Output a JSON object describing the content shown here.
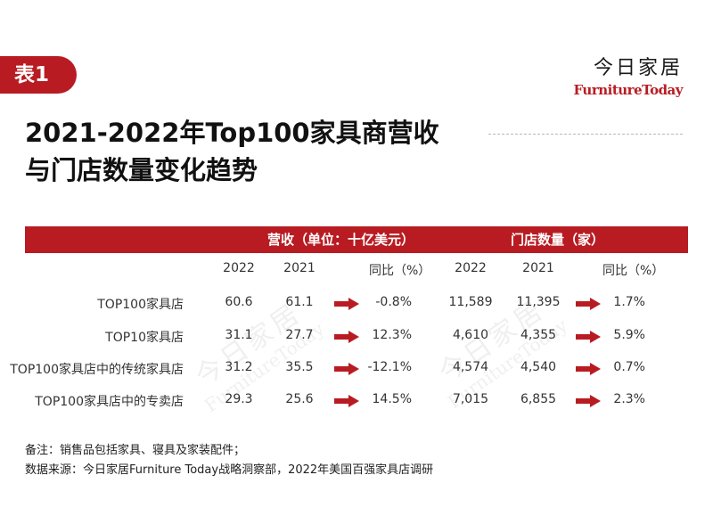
{
  "tag": "表1",
  "brand": {
    "cn": "今日家居",
    "en": "FurnitureToday"
  },
  "title": {
    "line1": "2021-2022年Top100家具商营收",
    "line2": "与门店数量变化趋势"
  },
  "table": {
    "group_revenue": "营收（单位：十亿美元）",
    "group_stores": "门店数量（家）",
    "col_headers": [
      "2022",
      "2021",
      "同比（%）",
      "2022",
      "2021",
      "同比（%）"
    ],
    "rows": [
      {
        "label": "TOP100家具店",
        "rev2022": "60.6",
        "rev2021": "61.1",
        "rev_yoy": "-0.8%",
        "st2022": "11,589",
        "st2021": "11,395",
        "st_yoy": "1.7%"
      },
      {
        "label": "TOP10家具店",
        "rev2022": "31.1",
        "rev2021": "27.7",
        "rev_yoy": "12.3%",
        "st2022": "4,610",
        "st2021": "4,355",
        "st_yoy": "5.9%"
      },
      {
        "label": "TOP100家具店中的传统家具店",
        "rev2022": "31.2",
        "rev2021": "35.5",
        "rev_yoy": "-12.1%",
        "st2022": "4,574",
        "st2021": "4,540",
        "st_yoy": "0.7%"
      },
      {
        "label": "TOP100家具店中的专卖店",
        "rev2022": "29.3",
        "rev2021": "25.6",
        "rev_yoy": "14.5%",
        "st2022": "7,015",
        "st2021": "6,855",
        "st_yoy": "2.3%"
      }
    ]
  },
  "watermark": {
    "cn": "今日家居",
    "en": "FurnitureToday"
  },
  "notes": {
    "remark": "备注：销售品包括家具、寝具及家装配件；",
    "source": "数据来源：今日家居Furniture Today战略洞察部，2022年美国百强家具店调研"
  },
  "colors": {
    "accent": "#b81c22",
    "arrow": "#b81c22"
  }
}
